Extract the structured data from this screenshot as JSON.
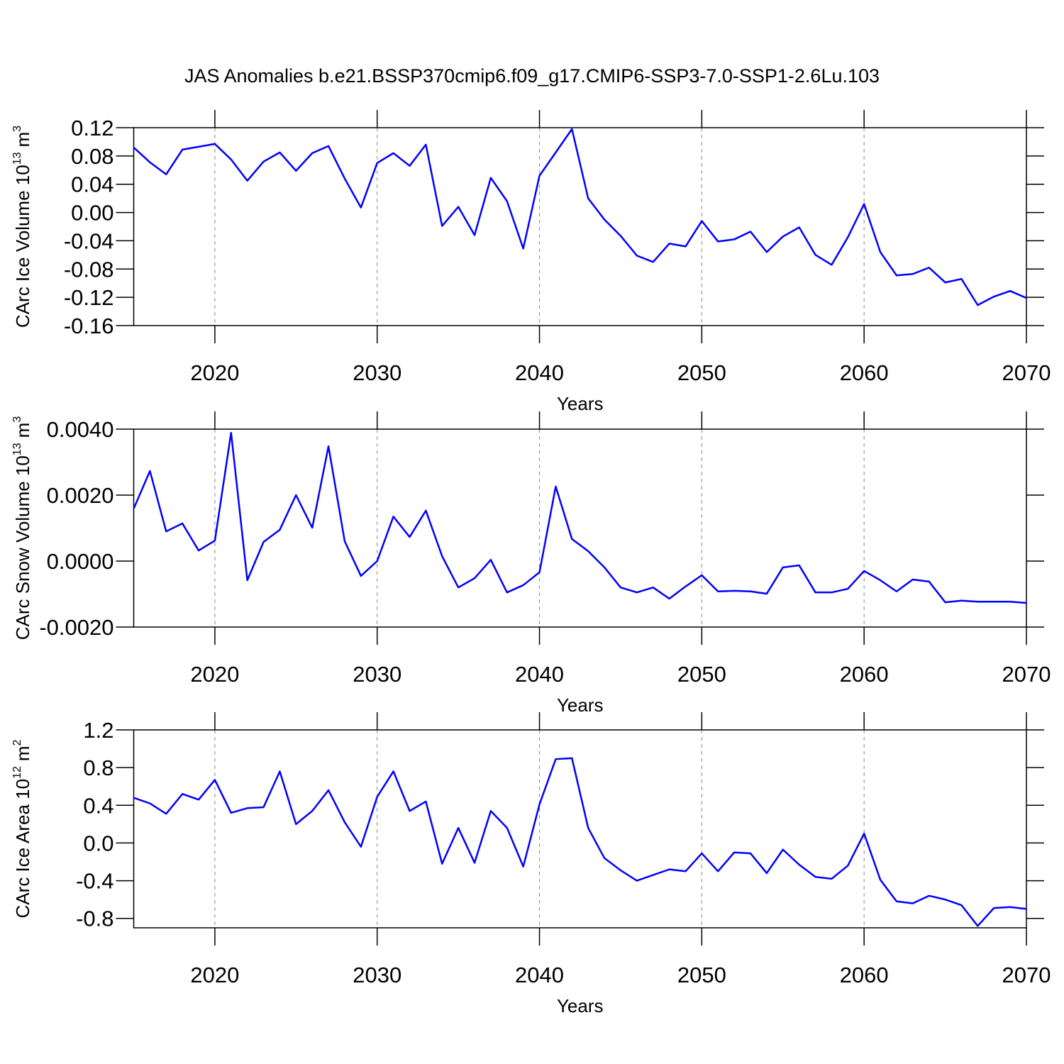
{
  "chart_data": [
    {
      "type": "line",
      "title": "JAS Anomalies b.e21.BSSP370cmip6.f09_g17.CMIP6-SSP3-7.0-SSP1-2.6Lu.103",
      "xlabel": "Years",
      "ylabel": {
        "text": "CArc Ice Volume 10",
        "exp": "13",
        "unit": "m",
        "unit_exp": "3"
      },
      "x": [
        2015,
        2016,
        2017,
        2018,
        2019,
        2020,
        2021,
        2022,
        2023,
        2024,
        2025,
        2026,
        2027,
        2028,
        2029,
        2030,
        2031,
        2032,
        2033,
        2034,
        2035,
        2036,
        2037,
        2038,
        2039,
        2040,
        2041,
        2042,
        2043,
        2044,
        2045,
        2046,
        2047,
        2048,
        2049,
        2050,
        2051,
        2052,
        2053,
        2054,
        2055,
        2056,
        2057,
        2058,
        2059,
        2060,
        2061,
        2062,
        2063,
        2064,
        2065,
        2066,
        2067,
        2068,
        2069,
        2070
      ],
      "series": [
        {
          "color": "#0000ff",
          "values": [
            0.092,
            0.071,
            0.054,
            0.089,
            0.093,
            0.097,
            0.075,
            0.045,
            0.072,
            0.085,
            0.059,
            0.084,
            0.094,
            0.048,
            0.007,
            0.07,
            0.084,
            0.066,
            0.096,
            -0.019,
            0.008,
            -0.032,
            0.049,
            0.016,
            -0.051,
            0.052,
            0.085,
            0.118,
            0.02,
            -0.01,
            -0.033,
            -0.061,
            -0.07,
            -0.044,
            -0.048,
            -0.012,
            -0.041,
            -0.038,
            -0.027,
            -0.056,
            -0.034,
            -0.021,
            -0.06,
            -0.074,
            -0.035,
            0.012,
            -0.056,
            -0.089,
            -0.087,
            -0.078,
            -0.099,
            -0.094,
            -0.131,
            -0.119,
            -0.111,
            -0.121
          ]
        }
      ],
      "xlim": [
        2015,
        2070
      ],
      "xticks": [
        2020,
        2030,
        2040,
        2050,
        2060,
        2070
      ],
      "ylim": [
        -0.16,
        0.12
      ],
      "yticks": [
        0.12,
        0.08,
        0.04,
        {
          "value": 0,
          "label": "0.00"
        },
        -0.04,
        -0.08,
        -0.12,
        -0.16
      ],
      "grid": true
    },
    {
      "type": "line",
      "xlabel": "Years",
      "ylabel": {
        "text": "CArc Snow Volume 10",
        "exp": "13",
        "unit": "m",
        "unit_exp": "3"
      },
      "x": [
        2015,
        2016,
        2017,
        2018,
        2019,
        2020,
        2021,
        2022,
        2023,
        2024,
        2025,
        2026,
        2027,
        2028,
        2029,
        2030,
        2031,
        2032,
        2033,
        2034,
        2035,
        2036,
        2037,
        2038,
        2039,
        2040,
        2041,
        2042,
        2043,
        2044,
        2045,
        2046,
        2047,
        2048,
        2049,
        2050,
        2051,
        2052,
        2053,
        2054,
        2055,
        2056,
        2057,
        2058,
        2059,
        2060,
        2061,
        2062,
        2063,
        2064,
        2065,
        2066,
        2067,
        2068,
        2069,
        2070
      ],
      "series": [
        {
          "color": "#0000ff",
          "values": [
            0.00159,
            0.00273,
            0.0009,
            0.00114,
            0.00032,
            0.00062,
            0.00389,
            -0.00058,
            0.00058,
            0.00095,
            0.002,
            0.00101,
            0.00348,
            0.0006,
            -0.00045,
            0,
            0.00135,
            0.00073,
            0.00153,
            0.00015,
            -0.0008,
            -0.00052,
            4e-05,
            -0.00095,
            -0.00073,
            -0.00034,
            0.00226,
            0.00067,
            0.0003,
            -0.00019,
            -0.0008,
            -0.00095,
            -0.0008,
            -0.00114,
            -0.00077,
            -0.00043,
            -0.00092,
            -0.0009,
            -0.00092,
            -0.00099,
            -0.00019,
            -0.00013,
            -0.00095,
            -0.00095,
            -0.00084,
            -0.0003,
            -0.00058,
            -0.00092,
            -0.00056,
            -0.00062,
            -0.00125,
            -0.0012,
            -0.00123,
            -0.00123,
            -0.00123,
            -0.00127
          ]
        }
      ],
      "xlim": [
        2015,
        2070
      ],
      "xticks": [
        2020,
        2030,
        2040,
        2050,
        2060,
        2070
      ],
      "ylim": [
        -0.002,
        0.004
      ],
      "yticks": [
        {
          "value": 0.004,
          "label": "0.0040"
        },
        {
          "value": 0.002,
          "label": "0.0020"
        },
        {
          "value": 0,
          "label": "0.0000"
        },
        {
          "value": -0.002,
          "label": "-0.0020"
        }
      ],
      "grid": true
    },
    {
      "type": "line",
      "xlabel": "Years",
      "ylabel": {
        "text": "CArc Ice Area 10",
        "exp": "12",
        "unit": "m",
        "unit_exp": "2"
      },
      "x": [
        2015,
        2016,
        2017,
        2018,
        2019,
        2020,
        2021,
        2022,
        2023,
        2024,
        2025,
        2026,
        2027,
        2028,
        2029,
        2030,
        2031,
        2032,
        2033,
        2034,
        2035,
        2036,
        2037,
        2038,
        2039,
        2040,
        2041,
        2042,
        2043,
        2044,
        2045,
        2046,
        2047,
        2048,
        2049,
        2050,
        2051,
        2052,
        2053,
        2054,
        2055,
        2056,
        2057,
        2058,
        2059,
        2060,
        2061,
        2062,
        2063,
        2064,
        2065,
        2066,
        2067,
        2068,
        2069,
        2070
      ],
      "series": [
        {
          "color": "#0000ff",
          "values": [
            0.48,
            0.42,
            0.31,
            0.52,
            0.46,
            0.67,
            0.32,
            0.37,
            0.38,
            0.76,
            0.2,
            0.34,
            0.56,
            0.22,
            -0.04,
            0.49,
            0.76,
            0.34,
            0.44,
            -0.22,
            0.16,
            -0.21,
            0.34,
            0.16,
            -0.25,
            0.41,
            0.89,
            0.9,
            0.16,
            -0.16,
            -0.29,
            -0.4,
            -0.34,
            -0.28,
            -0.3,
            -0.11,
            -0.3,
            -0.1,
            -0.11,
            -0.32,
            -0.07,
            -0.23,
            -0.36,
            -0.38,
            -0.24,
            0.1,
            -0.39,
            -0.62,
            -0.64,
            -0.56,
            -0.6,
            -0.66,
            -0.88,
            -0.69,
            -0.68,
            -0.7
          ]
        }
      ],
      "xlim": [
        2015,
        2070
      ],
      "xticks": [
        2020,
        2030,
        2040,
        2050,
        2060,
        2070
      ],
      "ylim": [
        -0.9,
        1.2
      ],
      "yticks": [
        1.2,
        0.8,
        0.4,
        {
          "value": 0,
          "label": "0.0"
        },
        -0.4,
        -0.8
      ],
      "grid": true
    }
  ]
}
